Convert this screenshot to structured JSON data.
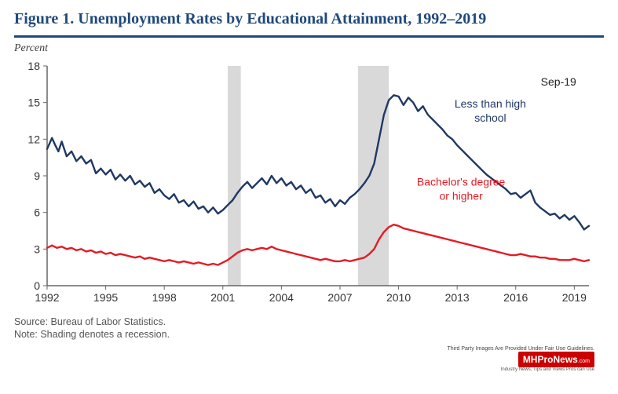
{
  "chart": {
    "type": "line",
    "title": "Figure 1. Unemployment Rates by Educational Attainment, 1992–2019",
    "ylabel": "Percent",
    "annotation_top_right": "Sep-19",
    "series_a_label": "Less than high school",
    "series_b_label": "Bachelor's degree or higher",
    "x_range": [
      1992,
      2019.75
    ],
    "y_range": [
      0,
      18
    ],
    "x_ticks": [
      1992,
      1995,
      1998,
      2001,
      2004,
      2007,
      2010,
      2013,
      2016,
      2019
    ],
    "y_ticks": [
      0,
      3,
      6,
      9,
      12,
      15,
      18
    ],
    "x_tick_labels": [
      "1992",
      "1995",
      "1998",
      "2001",
      "2004",
      "2007",
      "2010",
      "2013",
      "2016",
      "2019"
    ],
    "y_tick_labels": [
      "0",
      "3",
      "6",
      "9",
      "12",
      "15",
      "18"
    ],
    "axis_color": "#666666",
    "tick_label_color": "#333333",
    "tick_fontsize": 14,
    "background_color": "#ffffff",
    "recession_band_color": "#d9d9d9",
    "recession_bands": [
      [
        2001.25,
        2001.92
      ],
      [
        2007.92,
        2009.5
      ]
    ],
    "series_a_color": "#1f3864",
    "series_b_color": "#e31b23",
    "line_width": 2.4,
    "label_fontsize": 14,
    "series_a": [
      [
        1992.0,
        11.2
      ],
      [
        1992.25,
        12.1
      ],
      [
        1992.42,
        11.5
      ],
      [
        1992.58,
        11.0
      ],
      [
        1992.75,
        11.8
      ],
      [
        1993.0,
        10.6
      ],
      [
        1993.25,
        11.0
      ],
      [
        1993.5,
        10.2
      ],
      [
        1993.75,
        10.6
      ],
      [
        1994.0,
        10.0
      ],
      [
        1994.25,
        10.3
      ],
      [
        1994.5,
        9.2
      ],
      [
        1994.75,
        9.6
      ],
      [
        1995.0,
        9.1
      ],
      [
        1995.25,
        9.5
      ],
      [
        1995.5,
        8.7
      ],
      [
        1995.75,
        9.1
      ],
      [
        1996.0,
        8.6
      ],
      [
        1996.25,
        9.0
      ],
      [
        1996.5,
        8.3
      ],
      [
        1996.75,
        8.6
      ],
      [
        1997.0,
        8.1
      ],
      [
        1997.25,
        8.4
      ],
      [
        1997.5,
        7.6
      ],
      [
        1997.75,
        7.9
      ],
      [
        1998.0,
        7.4
      ],
      [
        1998.25,
        7.1
      ],
      [
        1998.5,
        7.5
      ],
      [
        1998.75,
        6.8
      ],
      [
        1999.0,
        7.0
      ],
      [
        1999.25,
        6.5
      ],
      [
        1999.5,
        6.9
      ],
      [
        1999.75,
        6.3
      ],
      [
        2000.0,
        6.5
      ],
      [
        2000.25,
        6.0
      ],
      [
        2000.5,
        6.4
      ],
      [
        2000.75,
        5.9
      ],
      [
        2001.0,
        6.2
      ],
      [
        2001.25,
        6.6
      ],
      [
        2001.5,
        7.0
      ],
      [
        2001.75,
        7.6
      ],
      [
        2002.0,
        8.1
      ],
      [
        2002.25,
        8.5
      ],
      [
        2002.5,
        8.0
      ],
      [
        2002.75,
        8.4
      ],
      [
        2003.0,
        8.8
      ],
      [
        2003.25,
        8.3
      ],
      [
        2003.5,
        9.0
      ],
      [
        2003.75,
        8.4
      ],
      [
        2004.0,
        8.8
      ],
      [
        2004.25,
        8.2
      ],
      [
        2004.5,
        8.5
      ],
      [
        2004.75,
        7.9
      ],
      [
        2005.0,
        8.2
      ],
      [
        2005.25,
        7.6
      ],
      [
        2005.5,
        7.9
      ],
      [
        2005.75,
        7.2
      ],
      [
        2006.0,
        7.4
      ],
      [
        2006.25,
        6.8
      ],
      [
        2006.5,
        7.1
      ],
      [
        2006.75,
        6.5
      ],
      [
        2007.0,
        7.0
      ],
      [
        2007.25,
        6.7
      ],
      [
        2007.5,
        7.2
      ],
      [
        2007.75,
        7.5
      ],
      [
        2008.0,
        7.9
      ],
      [
        2008.25,
        8.4
      ],
      [
        2008.5,
        9.0
      ],
      [
        2008.75,
        10.0
      ],
      [
        2009.0,
        12.0
      ],
      [
        2009.25,
        14.0
      ],
      [
        2009.5,
        15.2
      ],
      [
        2009.75,
        15.6
      ],
      [
        2010.0,
        15.5
      ],
      [
        2010.25,
        14.8
      ],
      [
        2010.5,
        15.4
      ],
      [
        2010.75,
        15.0
      ],
      [
        2011.0,
        14.3
      ],
      [
        2011.25,
        14.7
      ],
      [
        2011.5,
        14.0
      ],
      [
        2011.75,
        13.6
      ],
      [
        2012.0,
        13.2
      ],
      [
        2012.25,
        12.8
      ],
      [
        2012.5,
        12.3
      ],
      [
        2012.75,
        12.0
      ],
      [
        2013.0,
        11.5
      ],
      [
        2013.25,
        11.1
      ],
      [
        2013.5,
        10.7
      ],
      [
        2013.75,
        10.3
      ],
      [
        2014.0,
        9.9
      ],
      [
        2014.25,
        9.5
      ],
      [
        2014.5,
        9.1
      ],
      [
        2014.75,
        8.8
      ],
      [
        2015.0,
        8.5
      ],
      [
        2015.25,
        8.2
      ],
      [
        2015.5,
        7.9
      ],
      [
        2015.75,
        7.5
      ],
      [
        2016.0,
        7.6
      ],
      [
        2016.25,
        7.2
      ],
      [
        2016.5,
        7.5
      ],
      [
        2016.75,
        7.8
      ],
      [
        2017.0,
        6.8
      ],
      [
        2017.25,
        6.4
      ],
      [
        2017.5,
        6.1
      ],
      [
        2017.75,
        5.8
      ],
      [
        2018.0,
        5.9
      ],
      [
        2018.25,
        5.5
      ],
      [
        2018.5,
        5.8
      ],
      [
        2018.75,
        5.4
      ],
      [
        2019.0,
        5.7
      ],
      [
        2019.25,
        5.2
      ],
      [
        2019.5,
        4.6
      ],
      [
        2019.75,
        4.9
      ]
    ],
    "series_b": [
      [
        1992.0,
        3.1
      ],
      [
        1992.25,
        3.3
      ],
      [
        1992.5,
        3.1
      ],
      [
        1992.75,
        3.2
      ],
      [
        1993.0,
        3.0
      ],
      [
        1993.25,
        3.1
      ],
      [
        1993.5,
        2.9
      ],
      [
        1993.75,
        3.0
      ],
      [
        1994.0,
        2.8
      ],
      [
        1994.25,
        2.9
      ],
      [
        1994.5,
        2.7
      ],
      [
        1994.75,
        2.8
      ],
      [
        1995.0,
        2.6
      ],
      [
        1995.25,
        2.7
      ],
      [
        1995.5,
        2.5
      ],
      [
        1995.75,
        2.6
      ],
      [
        1996.0,
        2.5
      ],
      [
        1996.25,
        2.4
      ],
      [
        1996.5,
        2.3
      ],
      [
        1996.75,
        2.4
      ],
      [
        1997.0,
        2.2
      ],
      [
        1997.25,
        2.3
      ],
      [
        1997.5,
        2.2
      ],
      [
        1997.75,
        2.1
      ],
      [
        1998.0,
        2.0
      ],
      [
        1998.25,
        2.1
      ],
      [
        1998.5,
        2.0
      ],
      [
        1998.75,
        1.9
      ],
      [
        1999.0,
        2.0
      ],
      [
        1999.25,
        1.9
      ],
      [
        1999.5,
        1.8
      ],
      [
        1999.75,
        1.9
      ],
      [
        2000.0,
        1.8
      ],
      [
        2000.25,
        1.7
      ],
      [
        2000.5,
        1.8
      ],
      [
        2000.75,
        1.7
      ],
      [
        2001.0,
        1.9
      ],
      [
        2001.25,
        2.1
      ],
      [
        2001.5,
        2.4
      ],
      [
        2001.75,
        2.7
      ],
      [
        2002.0,
        2.9
      ],
      [
        2002.25,
        3.0
      ],
      [
        2002.5,
        2.9
      ],
      [
        2002.75,
        3.0
      ],
      [
        2003.0,
        3.1
      ],
      [
        2003.25,
        3.0
      ],
      [
        2003.5,
        3.2
      ],
      [
        2003.75,
        3.0
      ],
      [
        2004.0,
        2.9
      ],
      [
        2004.25,
        2.8
      ],
      [
        2004.5,
        2.7
      ],
      [
        2004.75,
        2.6
      ],
      [
        2005.0,
        2.5
      ],
      [
        2005.25,
        2.4
      ],
      [
        2005.5,
        2.3
      ],
      [
        2005.75,
        2.2
      ],
      [
        2006.0,
        2.1
      ],
      [
        2006.25,
        2.2
      ],
      [
        2006.5,
        2.1
      ],
      [
        2006.75,
        2.0
      ],
      [
        2007.0,
        2.0
      ],
      [
        2007.25,
        2.1
      ],
      [
        2007.5,
        2.0
      ],
      [
        2007.75,
        2.1
      ],
      [
        2008.0,
        2.2
      ],
      [
        2008.25,
        2.3
      ],
      [
        2008.5,
        2.6
      ],
      [
        2008.75,
        3.0
      ],
      [
        2009.0,
        3.8
      ],
      [
        2009.25,
        4.4
      ],
      [
        2009.5,
        4.8
      ],
      [
        2009.75,
        5.0
      ],
      [
        2010.0,
        4.9
      ],
      [
        2010.25,
        4.7
      ],
      [
        2010.5,
        4.6
      ],
      [
        2010.75,
        4.5
      ],
      [
        2011.0,
        4.4
      ],
      [
        2011.25,
        4.3
      ],
      [
        2011.5,
        4.2
      ],
      [
        2011.75,
        4.1
      ],
      [
        2012.0,
        4.0
      ],
      [
        2012.25,
        3.9
      ],
      [
        2012.5,
        3.8
      ],
      [
        2012.75,
        3.7
      ],
      [
        2013.0,
        3.6
      ],
      [
        2013.25,
        3.5
      ],
      [
        2013.5,
        3.4
      ],
      [
        2013.75,
        3.3
      ],
      [
        2014.0,
        3.2
      ],
      [
        2014.25,
        3.1
      ],
      [
        2014.5,
        3.0
      ],
      [
        2014.75,
        2.9
      ],
      [
        2015.0,
        2.8
      ],
      [
        2015.25,
        2.7
      ],
      [
        2015.5,
        2.6
      ],
      [
        2015.75,
        2.5
      ],
      [
        2016.0,
        2.5
      ],
      [
        2016.25,
        2.6
      ],
      [
        2016.5,
        2.5
      ],
      [
        2016.75,
        2.4
      ],
      [
        2017.0,
        2.4
      ],
      [
        2017.25,
        2.3
      ],
      [
        2017.5,
        2.3
      ],
      [
        2017.75,
        2.2
      ],
      [
        2018.0,
        2.2
      ],
      [
        2018.25,
        2.1
      ],
      [
        2018.5,
        2.1
      ],
      [
        2018.75,
        2.1
      ],
      [
        2019.0,
        2.2
      ],
      [
        2019.25,
        2.1
      ],
      [
        2019.5,
        2.0
      ],
      [
        2019.75,
        2.1
      ]
    ],
    "source_line1": "Source: Bureau of Labor Statistics.",
    "source_line2": "Note: Shading denotes a recession."
  },
  "watermark": {
    "disclaimer": "Third Party Images Are Provided Under Fair Use Guidelines.",
    "logo_text": "MHProNews",
    "logo_suffix": ".com",
    "tagline": "Industry News, Tips and Views Pros can Use"
  }
}
